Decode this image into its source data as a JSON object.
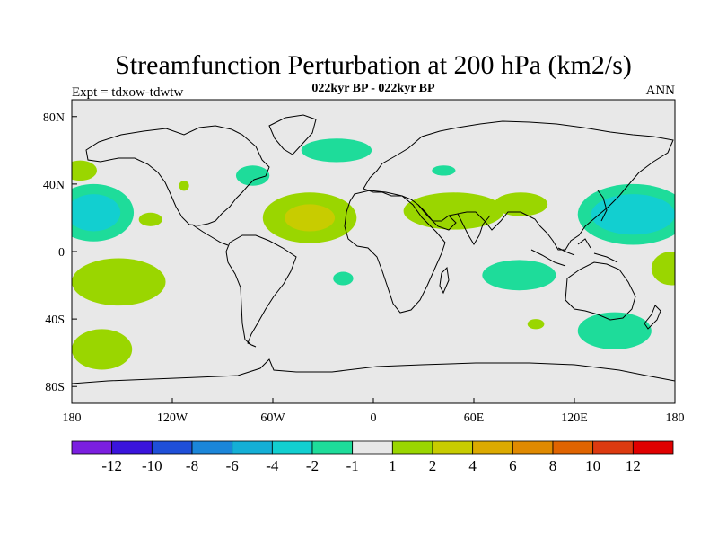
{
  "chart_data": {
    "type": "heatmap",
    "title": "Streamfunction Perturbation at 200 hPa (km2/s)",
    "subtitle": "022kyr BP - 022kyr BP",
    "left_label": "Expt = tdxow-tdwtw",
    "right_label": "ANN",
    "x_ticks": [
      "180",
      "120W",
      "60W",
      "0",
      "60E",
      "120E",
      "180"
    ],
    "x_tick_values": [
      -180,
      -120,
      -60,
      0,
      60,
      120,
      180
    ],
    "y_ticks": [
      "80N",
      "40N",
      "0",
      "40S",
      "80S"
    ],
    "y_tick_values": [
      80,
      40,
      0,
      -40,
      -80
    ],
    "xlim": [
      -180,
      180
    ],
    "ylim": [
      -90,
      90
    ],
    "colorbar": {
      "labels": [
        "-12",
        "-10",
        "-8",
        "-6",
        "-4",
        "-2",
        "-1",
        "1",
        "2",
        "4",
        "6",
        "8",
        "10",
        "12"
      ],
      "colors": [
        "#7b1fe0",
        "#3a14dc",
        "#1f4fd8",
        "#1b86d9",
        "#14afd6",
        "#12cfd0",
        "#1edc9a",
        "#e8e8e8",
        "#9ad600",
        "#c8cc00",
        "#dcaa00",
        "#e08a00",
        "#e06400",
        "#dc3a10",
        "#e00000"
      ]
    },
    "anomaly_regions": [
      {
        "name": "north-pacific-high",
        "lon": -167,
        "lat": 23,
        "lon_radius": 24,
        "lat_radius": 17,
        "level": "-1 to -2",
        "color": "#1edc9a"
      },
      {
        "name": "north-pacific-core",
        "lon": -167,
        "lat": 23,
        "lon_radius": 16,
        "lat_radius": 11,
        "level": "-2 to -4",
        "color": "#12cfd0"
      },
      {
        "name": "alaska-patch",
        "lon": -175,
        "lat": 48,
        "lon_radius": 10,
        "lat_radius": 6,
        "level": "1 to 2",
        "color": "#9ad600"
      },
      {
        "name": "central-pacific-small",
        "lon": -133,
        "lat": 19,
        "lon_radius": 7,
        "lat_radius": 4,
        "level": "1 to 2",
        "color": "#9ad600"
      },
      {
        "name": "rockies-small",
        "lon": -113,
        "lat": 39,
        "lon_radius": 3,
        "lat_radius": 3,
        "level": "1 to 2",
        "color": "#9ad600"
      },
      {
        "name": "canada-east",
        "lon": -72,
        "lat": 45,
        "lon_radius": 10,
        "lat_radius": 6,
        "level": "-1 to -2",
        "color": "#1edc9a"
      },
      {
        "name": "greenland-nordic",
        "lon": -22,
        "lat": 60,
        "lon_radius": 21,
        "lat_radius": 7,
        "level": "-1 to -2",
        "color": "#1edc9a"
      },
      {
        "name": "north-atlantic-outer",
        "lon": -38,
        "lat": 20,
        "lon_radius": 28,
        "lat_radius": 15,
        "level": "1 to 2",
        "color": "#9ad600"
      },
      {
        "name": "north-atlantic-inner",
        "lon": -38,
        "lat": 20,
        "lon_radius": 15,
        "lat_radius": 8,
        "level": "2 to 4",
        "color": "#c8cc00"
      },
      {
        "name": "siberia-small",
        "lon": 42,
        "lat": 48,
        "lon_radius": 7,
        "lat_radius": 3,
        "level": "-1 to -2",
        "color": "#1edc9a"
      },
      {
        "name": "mideast-band",
        "lon": 48,
        "lat": 24,
        "lon_radius": 30,
        "lat_radius": 11,
        "level": "1 to 2",
        "color": "#9ad600"
      },
      {
        "name": "india-band",
        "lon": 88,
        "lat": 28,
        "lon_radius": 16,
        "lat_radius": 7,
        "level": "1 to 2",
        "color": "#9ad600"
      },
      {
        "name": "west-pacific-outer",
        "lon": 155,
        "lat": 22,
        "lon_radius": 33,
        "lat_radius": 18,
        "level": "-1 to -2",
        "color": "#1edc9a"
      },
      {
        "name": "west-pacific-core",
        "lon": 155,
        "lat": 22,
        "lon_radius": 25,
        "lat_radius": 12,
        "level": "-2 to -4",
        "color": "#12cfd0"
      },
      {
        "name": "south-pacific-east",
        "lon": -152,
        "lat": -18,
        "lon_radius": 28,
        "lat_radius": 14,
        "level": "1 to 2",
        "color": "#9ad600"
      },
      {
        "name": "south-pacific-far",
        "lon": -162,
        "lat": -58,
        "lon_radius": 18,
        "lat_radius": 12,
        "level": "1 to 2",
        "color": "#9ad600"
      },
      {
        "name": "south-atlantic-small",
        "lon": -18,
        "lat": -16,
        "lon_radius": 6,
        "lat_radius": 4,
        "level": "-1 to -2",
        "color": "#1edc9a"
      },
      {
        "name": "indian-ocean-band",
        "lon": 87,
        "lat": -14,
        "lon_radius": 22,
        "lat_radius": 9,
        "level": "-1 to -2",
        "color": "#1edc9a"
      },
      {
        "name": "south-indian-small",
        "lon": 97,
        "lat": -43,
        "lon_radius": 5,
        "lat_radius": 3,
        "level": "1 to 2",
        "color": "#9ad600"
      },
      {
        "name": "tasman-band",
        "lon": 144,
        "lat": -47,
        "lon_radius": 22,
        "lat_radius": 11,
        "level": "-1 to -2",
        "color": "#1edc9a"
      },
      {
        "name": "southwest-pacific-far",
        "lon": 178,
        "lat": -10,
        "lon_radius": 12,
        "lat_radius": 10,
        "level": "1 to 2",
        "color": "#9ad600"
      }
    ]
  }
}
